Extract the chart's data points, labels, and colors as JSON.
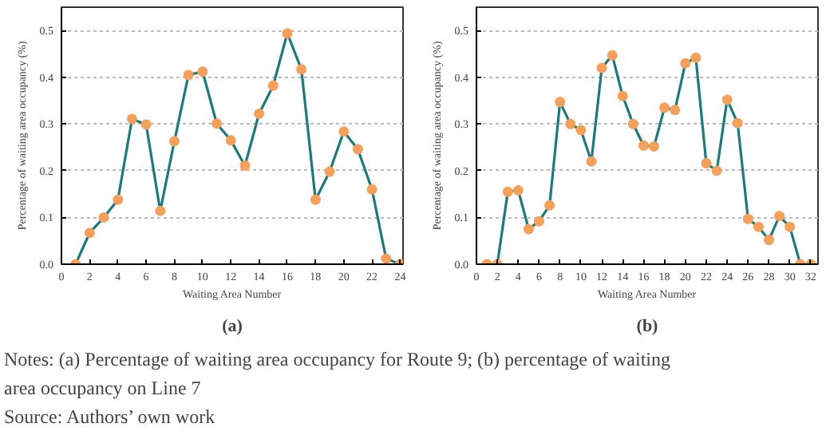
{
  "chart_data": [
    {
      "type": "line",
      "title": "(a)",
      "xlabel": "Waiting Area Number",
      "ylabel": "Percentage of waiting area occupancy (%)",
      "x": [
        1,
        2,
        3,
        4,
        5,
        6,
        7,
        8,
        9,
        10,
        11,
        12,
        13,
        14,
        15,
        16,
        17,
        18,
        19,
        20,
        21,
        22,
        23,
        24
      ],
      "series": [
        {
          "color": "#1a7a7c",
          "colors": [
            "#f5a05a",
            "#f5a05a",
            "#f5a05a",
            "#f5a05a",
            "#f5a05a",
            "#f5a05a",
            "#f5a05a",
            "#f5a05a",
            "#f5a05a",
            "#f5a05a",
            "#f5a05a",
            "#f5a05a",
            "#f5a05a",
            "#f5a05a",
            "#f5a05a",
            "#f5a05a",
            "#f5a05a",
            "#f5a05a",
            "#f5a05a",
            "#f5a05a",
            "#f5a05a",
            "#f5a05a",
            "#f5a05a",
            "#f5a05a"
          ],
          "values": [
            0,
            0.067,
            0.1,
            0.138,
            0.311,
            0.299,
            0.114,
            0.263,
            0.405,
            0.412,
            0.301,
            0.265,
            0.211,
            0.322,
            0.382,
            0.494,
            0.417,
            0.138,
            0.198,
            0.284,
            0.246,
            0.16,
            0.012,
            0
          ]
        }
      ],
      "xlim": [
        0,
        24.2
      ],
      "xticks": [
        0,
        2,
        4,
        6,
        8,
        10,
        12,
        14,
        16,
        18,
        20,
        22,
        24
      ],
      "ylim": [
        0,
        0.55
      ],
      "yticks": [
        {
          "value": 0,
          "label": "0.0"
        },
        0.1,
        0.2,
        0.3,
        0.4,
        0.5
      ],
      "grid": "y",
      "marker": "circle",
      "line_style": "solid"
    },
    {
      "type": "line",
      "title": "(b)",
      "xlabel": "Waiting Area Number",
      "ylabel": "Percentage of waiting area occupancy (%)",
      "x": [
        1,
        2,
        3,
        4,
        5,
        6,
        7,
        8,
        9,
        10,
        11,
        12,
        13,
        14,
        15,
        16,
        17,
        18,
        19,
        20,
        21,
        22,
        23,
        24,
        25,
        26,
        27,
        28,
        29,
        30,
        31,
        32
      ],
      "series": [
        {
          "color": "#1a7a7c",
          "colors": [
            "#f5a05a",
            "#f5a05a",
            "#f5a05a",
            "#f5a05a",
            "#f5a05a",
            "#f5a05a",
            "#f5a05a",
            "#f5a05a",
            "#f5a05a",
            "#f5a05a",
            "#f5a05a",
            "#f5a05a",
            "#f5a05a",
            "#f5a05a",
            "#f5a05a",
            "#f5a05a",
            "#f5a05a",
            "#f5a05a",
            "#f5a05a",
            "#f5a05a",
            "#f5a05a",
            "#f5a05a",
            "#f5a05a",
            "#f5a05a",
            "#f5a05a",
            "#f5a05a",
            "#f5a05a",
            "#f5a05a",
            "#f5a05a",
            "#f5a05a",
            "#f5a05a",
            "#f5a05a"
          ],
          "values": [
            0,
            0,
            0.155,
            0.158,
            0.075,
            0.092,
            0.126,
            0.347,
            0.3,
            0.287,
            0.22,
            0.42,
            0.447,
            0.36,
            0.3,
            0.254,
            0.252,
            0.335,
            0.33,
            0.43,
            0.442,
            0.216,
            0.2,
            0.352,
            0.302,
            0.097,
            0.08,
            0.052,
            0.103,
            0.08,
            0,
            0
          ]
        }
      ],
      "xlim": [
        0,
        32.7
      ],
      "xticks": [
        0,
        2,
        4,
        6,
        8,
        10,
        12,
        14,
        16,
        18,
        20,
        22,
        24,
        26,
        28,
        30,
        32
      ],
      "ylim": [
        0,
        0.55
      ],
      "yticks": [
        {
          "value": 0,
          "label": "0.0"
        },
        0.1,
        0.2,
        0.3,
        0.4,
        0.5
      ],
      "grid": "y",
      "marker": "circle",
      "line_style": "solid"
    },
    {
      "type": "other",
      "annotations": [
        "Notes: (a) Percentage of waiting area occupancy for Route 9; (b) percentage of waiting area occupancy on Line 7",
        "Source: Authors’ own work"
      ]
    }
  ]
}
